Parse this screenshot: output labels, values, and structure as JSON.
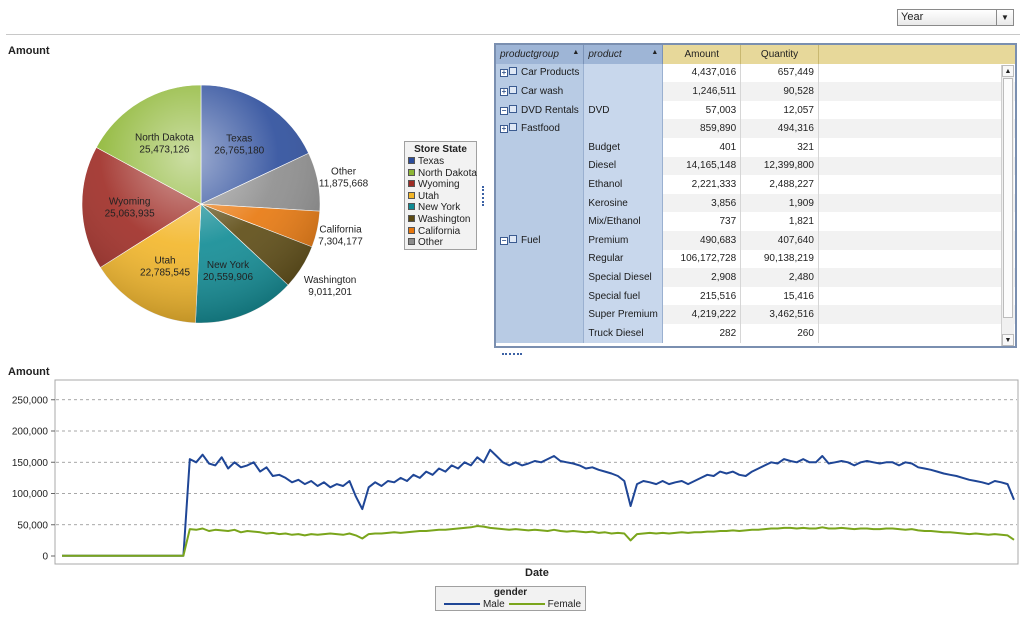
{
  "toolbar": {
    "year_select_value": "Year"
  },
  "pie": {
    "title": "Amount",
    "legend_title": "Store State"
  },
  "table": {
    "columns": [
      "productgroup",
      "product",
      "Amount",
      "Quantity"
    ],
    "rows": [
      {
        "group": "Car Products",
        "expander": "+",
        "product": "",
        "amount": "4,437,016",
        "quantity": "657,449"
      },
      {
        "group": "Car wash",
        "expander": "+",
        "product": "",
        "amount": "1,246,511",
        "quantity": "90,528"
      },
      {
        "group": "DVD Rentals",
        "expander": "−",
        "product": "DVD",
        "amount": "57,003",
        "quantity": "12,057"
      },
      {
        "group": "Fastfood",
        "expander": "+",
        "product": "",
        "amount": "859,890",
        "quantity": "494,316"
      }
    ],
    "fuel_group": {
      "group": "Fuel",
      "expander": "−"
    },
    "fuel_rows": [
      {
        "product": "Budget",
        "amount": "401",
        "quantity": "321"
      },
      {
        "product": "Diesel",
        "amount": "14,165,148",
        "quantity": "12,399,800"
      },
      {
        "product": "Ethanol",
        "amount": "2,221,333",
        "quantity": "2,488,227"
      },
      {
        "product": "Kerosine",
        "amount": "3,856",
        "quantity": "1,909"
      },
      {
        "product": "Mix/Ethanol",
        "amount": "737",
        "quantity": "1,821"
      },
      {
        "product": "Premium",
        "amount": "490,683",
        "quantity": "407,640"
      },
      {
        "product": "Regular",
        "amount": "106,172,728",
        "quantity": "90,138,219"
      },
      {
        "product": "Special Diesel",
        "amount": "2,908",
        "quantity": "2,480"
      },
      {
        "product": "Special fuel",
        "amount": "215,516",
        "quantity": "15,416"
      },
      {
        "product": "Super Premium",
        "amount": "4,219,222",
        "quantity": "3,462,516"
      },
      {
        "product": "Truck Diesel",
        "amount": "282",
        "quantity": "260"
      }
    ]
  },
  "line": {
    "title": "Amount",
    "xlabel": "Date",
    "legend_title": "gender"
  },
  "chart_data": [
    {
      "type": "pie",
      "title": "",
      "legend_title": "Store State",
      "slices": [
        {
          "label": "Texas",
          "value": 26765180,
          "value_text": "26,765,180",
          "color": "#2b4c9b"
        },
        {
          "label": "Other",
          "value": 11875668,
          "value_text": "11,875,668",
          "color": "#8c8c8c"
        },
        {
          "label": "California",
          "value": 7304177,
          "value_text": "7,304,177",
          "color": "#e8770c"
        },
        {
          "label": "Washington",
          "value": 9011201,
          "value_text": "9,011,201",
          "color": "#5c4a12"
        },
        {
          "label": "New York",
          "value": 20559906,
          "value_text": "20,559,906",
          "color": "#0f8b94"
        },
        {
          "label": "Utah",
          "value": 22785545,
          "value_text": "22,785,545",
          "color": "#f3b628"
        },
        {
          "label": "Wyoming",
          "value": 25063935,
          "value_text": "25,063,935",
          "color": "#9e2b24"
        },
        {
          "label": "North Dakota",
          "value": 25473126,
          "value_text": "25,473,126",
          "color": "#8db634"
        }
      ],
      "legend_order": [
        "Texas",
        "North Dakota",
        "Wyoming",
        "Utah",
        "New York",
        "Washington",
        "California",
        "Other"
      ]
    },
    {
      "type": "line",
      "title": "",
      "xlabel": "Date",
      "ylabel": "",
      "ylim": [
        0,
        280000
      ],
      "yticks": [
        0,
        50000,
        100000,
        150000,
        200000,
        250000
      ],
      "ytick_labels": [
        "0",
        "50,000",
        "100,000",
        "150,000",
        "200,000",
        "250,000"
      ],
      "grid": true,
      "legend": "bottom",
      "legend_title": "gender",
      "x_range": [
        0,
        150
      ],
      "series": [
        {
          "name": "Male",
          "color": "#1f4696",
          "values": [
            500,
            500,
            500,
            500,
            500,
            500,
            500,
            500,
            500,
            500,
            500,
            500,
            500,
            500,
            500,
            500,
            500,
            500,
            500,
            500,
            155000,
            150000,
            162000,
            148000,
            145000,
            158000,
            140000,
            150000,
            142000,
            145000,
            150000,
            135000,
            142000,
            128000,
            130000,
            125000,
            118000,
            122000,
            115000,
            120000,
            112000,
            118000,
            110000,
            115000,
            112000,
            120000,
            95000,
            75000,
            110000,
            118000,
            112000,
            120000,
            118000,
            125000,
            120000,
            130000,
            125000,
            135000,
            130000,
            140000,
            135000,
            145000,
            140000,
            150000,
            145000,
            158000,
            150000,
            170000,
            160000,
            150000,
            145000,
            150000,
            145000,
            148000,
            152000,
            150000,
            155000,
            160000,
            152000,
            150000,
            148000,
            145000,
            140000,
            142000,
            138000,
            135000,
            132000,
            128000,
            120000,
            80000,
            115000,
            120000,
            118000,
            115000,
            120000,
            115000,
            118000,
            120000,
            115000,
            120000,
            125000,
            130000,
            128000,
            135000,
            132000,
            135000,
            130000,
            128000,
            135000,
            140000,
            145000,
            150000,
            148000,
            155000,
            152000,
            150000,
            155000,
            150000,
            150000,
            160000,
            148000,
            150000,
            152000,
            150000,
            145000,
            150000,
            152000,
            150000,
            148000,
            150000,
            150000,
            145000,
            150000,
            148000,
            142000,
            140000,
            138000,
            135000,
            132000,
            130000,
            128000,
            125000,
            122000,
            120000,
            118000,
            115000,
            120000,
            118000,
            115000,
            90000
          ]
        },
        {
          "name": "Female",
          "color": "#7aa51c",
          "values": [
            500,
            500,
            500,
            500,
            500,
            500,
            500,
            500,
            500,
            500,
            500,
            500,
            500,
            500,
            500,
            500,
            500,
            500,
            500,
            500,
            43000,
            42000,
            44000,
            40000,
            42000,
            41000,
            40000,
            42000,
            38000,
            40000,
            39000,
            38000,
            36000,
            37000,
            35000,
            36000,
            34000,
            35000,
            33000,
            35000,
            34000,
            35000,
            36000,
            35000,
            34000,
            36000,
            33000,
            28000,
            35000,
            36000,
            36000,
            37000,
            38000,
            37000,
            38000,
            39000,
            40000,
            40000,
            41000,
            42000,
            42000,
            43000,
            44000,
            45000,
            46000,
            48000,
            47000,
            45000,
            44000,
            43000,
            42000,
            43000,
            42000,
            41000,
            42000,
            41000,
            40000,
            42000,
            40000,
            39000,
            40000,
            39000,
            38000,
            39000,
            37000,
            38000,
            36000,
            37000,
            36000,
            25000,
            35000,
            36000,
            37000,
            36000,
            37000,
            36000,
            37000,
            38000,
            37000,
            38000,
            38000,
            39000,
            39000,
            40000,
            40000,
            41000,
            40000,
            41000,
            42000,
            42000,
            43000,
            44000,
            44000,
            45000,
            45000,
            44000,
            45000,
            44000,
            44000,
            46000,
            44000,
            44000,
            45000,
            44000,
            43000,
            44000,
            44000,
            43000,
            43000,
            44000,
            44000,
            43000,
            42000,
            43000,
            41000,
            40000,
            40000,
            39000,
            38000,
            38000,
            37000,
            36000,
            35000,
            36000,
            35000,
            34000,
            35000,
            34000,
            33000,
            26000
          ]
        }
      ]
    }
  ]
}
